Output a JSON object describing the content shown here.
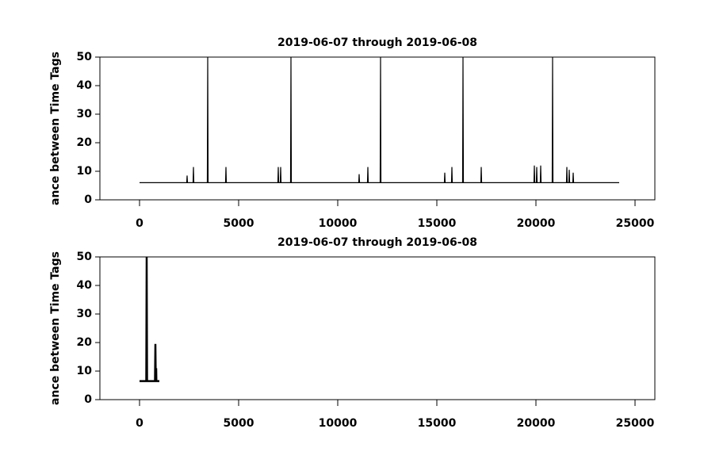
{
  "chart_data": [
    {
      "type": "line",
      "title": "2019-06-07 through 2019-06-08",
      "ylabel": "ance between Time Tags",
      "color": "#000000",
      "x": [
        0,
        2380,
        2400,
        2420,
        2700,
        2720,
        2740,
        3420,
        3440,
        3460,
        4340,
        4360,
        4380,
        6980,
        7000,
        7020,
        7100,
        7120,
        7140,
        7620,
        7640,
        7660,
        11060,
        11080,
        11100,
        11500,
        11520,
        11540,
        12140,
        12160,
        12180,
        15380,
        15400,
        15420,
        15740,
        15760,
        15780,
        16300,
        16320,
        16340,
        17220,
        17240,
        17260,
        19900,
        19920,
        19940,
        20020,
        20040,
        20060,
        20220,
        20240,
        20260,
        20820,
        20840,
        20860,
        21540,
        21560,
        21580,
        21660,
        21680,
        21700,
        21860,
        21880,
        21900,
        24200
      ],
      "values": [
        6,
        6,
        8.5,
        6,
        6,
        11.5,
        6,
        6,
        50,
        6,
        6,
        11.5,
        6,
        6,
        11.5,
        6,
        6,
        11.5,
        6,
        6,
        50,
        6,
        6,
        9,
        6,
        6,
        11.5,
        6,
        6,
        50,
        6,
        6,
        9.5,
        6,
        6,
        11.5,
        6,
        6,
        50,
        6,
        6,
        11.5,
        6,
        6,
        12,
        6,
        6,
        11.5,
        6,
        6,
        12,
        6,
        6,
        50,
        6,
        6,
        11.5,
        6,
        6,
        10.5,
        6,
        6,
        9.5,
        6,
        6
      ],
      "xlim": [
        -2000,
        26000
      ],
      "xticks": [
        0,
        5000,
        10000,
        15000,
        20000,
        25000
      ],
      "ylim": [
        0,
        50
      ],
      "yticks": [
        0,
        10,
        20,
        30,
        40,
        50
      ]
    },
    {
      "type": "line",
      "title": "2019-06-07 through 2019-06-08",
      "ylabel": "ance between Time Tags",
      "color": "#000000",
      "x": [
        0,
        340,
        360,
        380,
        780,
        800,
        820,
        830,
        840,
        850,
        1000
      ],
      "values": [
        6.5,
        6.5,
        50,
        6.5,
        6.5,
        19.5,
        6.5,
        6.5,
        11,
        6.5,
        6.5
      ],
      "xlim": [
        -2000,
        26000
      ],
      "xticks": [
        0,
        5000,
        10000,
        15000,
        20000,
        25000
      ],
      "ylim": [
        0,
        50
      ],
      "yticks": [
        0,
        10,
        20,
        30,
        40,
        50
      ]
    }
  ]
}
